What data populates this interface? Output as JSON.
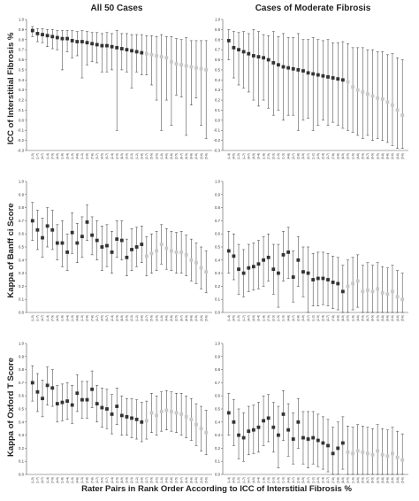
{
  "column_titles": [
    "All 50 Cases",
    "Cases of Moderate Fibrosis"
  ],
  "row_labels": [
    "ICC of Interstitial Fibrosis %",
    "Kappa of Banff ci Score",
    "Kappa of Oxford T Score"
  ],
  "footer": "Rater Pairs in Rank Order According to ICC of Interstitial Fibrosis %",
  "colors": {
    "marker_dark": "#333333",
    "marker_light": "#c8c8c8",
    "errorbar": "#333333",
    "axis": "#555555"
  },
  "chart_data": [
    {
      "type": "scatter",
      "panel": "ICC of Interstitial Fibrosis % / All 50 Cases",
      "ylim": [
        -0.3,
        1.0
      ],
      "yticks": [
        1.0,
        0.9,
        0.8,
        0.7,
        0.6,
        0.5,
        0.4,
        0.3,
        0.2,
        0.1,
        0.0,
        -0.1,
        -0.2,
        -0.3
      ],
      "x": [
        "(1-5)",
        "(1-7)",
        "(4-7)",
        "(1-4)",
        "(7-9)",
        "(4-9)",
        "(1-8)",
        "(3-4)",
        "(1-9)",
        "(4-8)",
        "(1-3)",
        "(2-8)",
        "(7-8)",
        "(3-7)",
        "(4-5)",
        "(5-7)",
        "(2-4)",
        "(2-9)",
        "(8-9)",
        "(3-9)",
        "(2-3)",
        "(1-2)",
        "(3-8)",
        "(2-7)",
        "(5-9)",
        "(3-5)",
        "(1-6)",
        "(4-6)",
        "(5-8)",
        "(2-5)",
        "(6-7)",
        "(6-9)",
        "(6-8)",
        "(2-6)",
        "(3-6)",
        "(5-6)"
      ],
      "values": [
        0.89,
        0.86,
        0.85,
        0.84,
        0.83,
        0.82,
        0.81,
        0.81,
        0.79,
        0.78,
        0.78,
        0.77,
        0.76,
        0.75,
        0.74,
        0.74,
        0.73,
        0.72,
        0.71,
        0.7,
        0.69,
        0.68,
        0.67,
        0.66,
        0.65,
        0.64,
        0.63,
        0.62,
        0.58,
        0.56,
        0.55,
        0.54,
        0.53,
        0.52,
        0.51,
        0.5
      ],
      "lower": [
        0.83,
        0.78,
        0.77,
        0.73,
        0.71,
        0.7,
        0.5,
        0.68,
        0.62,
        0.64,
        0.42,
        0.55,
        0.58,
        0.57,
        0.48,
        0.48,
        0.5,
        -0.1,
        0.5,
        0.48,
        0.32,
        0.48,
        0.45,
        0.45,
        0.35,
        0.2,
        -0.1,
        0.2,
        -0.05,
        0.25,
        0.23,
        -0.15,
        0.15,
        0.22,
        -0.05,
        -0.18
      ],
      "upper": [
        0.93,
        0.91,
        0.91,
        0.9,
        0.9,
        0.89,
        0.89,
        0.89,
        0.89,
        0.88,
        0.89,
        0.88,
        0.87,
        0.87,
        0.86,
        0.87,
        0.86,
        0.89,
        0.86,
        0.86,
        0.85,
        0.85,
        0.85,
        0.84,
        0.84,
        0.83,
        0.85,
        0.83,
        0.83,
        0.81,
        0.8,
        0.82,
        0.79,
        0.79,
        0.79,
        0.79
      ],
      "light_from_index": 23
    },
    {
      "type": "scatter",
      "panel": "ICC of Interstitial Fibrosis % / Cases of Moderate Fibrosis",
      "ylim": [
        -0.3,
        1.0
      ],
      "yticks": [
        1.0,
        0.9,
        0.8,
        0.7,
        0.6,
        0.5,
        0.4,
        0.3,
        0.2,
        0.1,
        0.0,
        -0.1,
        -0.2,
        -0.3
      ],
      "x": [
        "(1-4)",
        "(4-5)",
        "(1-5)",
        "(1-7)",
        "(4-7)",
        "(4-9)",
        "(3-4)",
        "(1-8)",
        "(7-9)",
        "(2-3)",
        "(1-9)",
        "(1-3)",
        "(4-8)",
        "(3-7)",
        "(2-8)",
        "(3-9)",
        "(5-7)",
        "(1-2)",
        "(2-9)",
        "(2-4)",
        "(2-7)",
        "(7-8)",
        "(3-8)",
        "(8-9)",
        "(3-5)",
        "(1-6)",
        "(4-6)",
        "(5-9)",
        "(6-7)",
        "(6-9)",
        "(2-5)",
        "(5-8)",
        "(6-8)",
        "(2-6)",
        "(3-6)",
        "(5-6)"
      ],
      "values": [
        0.79,
        0.72,
        0.7,
        0.68,
        0.66,
        0.64,
        0.63,
        0.62,
        0.6,
        0.57,
        0.55,
        0.53,
        0.52,
        0.51,
        0.5,
        0.49,
        0.47,
        0.46,
        0.45,
        0.44,
        0.43,
        0.42,
        0.41,
        0.4,
        0.38,
        0.33,
        0.3,
        0.28,
        0.26,
        0.24,
        0.22,
        0.21,
        0.18,
        0.15,
        0.1,
        0.05
      ],
      "lower": [
        0.6,
        0.42,
        0.35,
        0.32,
        0.28,
        0.2,
        0.14,
        0.2,
        0.12,
        0.05,
        0.1,
        0.0,
        0.05,
        0.05,
        -0.1,
        0.0,
        0.02,
        -0.1,
        -0.05,
        0.0,
        -0.05,
        -0.02,
        -0.05,
        -0.08,
        -0.1,
        -0.12,
        -0.15,
        -0.18,
        -0.15,
        -0.2,
        -0.18,
        -0.2,
        -0.22,
        -0.25,
        -0.28,
        -0.28
      ],
      "upper": [
        0.9,
        0.88,
        0.87,
        0.88,
        0.86,
        0.9,
        0.88,
        0.85,
        0.84,
        0.88,
        0.83,
        0.86,
        0.82,
        0.82,
        0.86,
        0.8,
        0.8,
        0.82,
        0.8,
        0.79,
        0.8,
        0.77,
        0.77,
        0.78,
        0.76,
        0.72,
        0.72,
        0.72,
        0.7,
        0.7,
        0.68,
        0.68,
        0.65,
        0.66,
        0.62,
        0.6
      ],
      "light_from_index": 24
    },
    {
      "type": "scatter",
      "panel": "Kappa of Banff ci Score / All 50 Cases",
      "ylim": [
        0.0,
        1.0
      ],
      "yticks": [
        1.0,
        0.9,
        0.8,
        0.7,
        0.6,
        0.5,
        0.4,
        0.3,
        0.2,
        0.1,
        0.0
      ],
      "x": [
        "(1-5)",
        "(1-7)",
        "(4-7)",
        "(1-4)",
        "(7-9)",
        "(4-9)",
        "(1-8)",
        "(3-4)",
        "(1-9)",
        "(4-8)",
        "(1-3)",
        "(2-8)",
        "(7-8)",
        "(3-7)",
        "(4-5)",
        "(5-7)",
        "(2-4)",
        "(2-9)",
        "(8-9)",
        "(3-9)",
        "(2-3)",
        "(1-2)",
        "(3-8)",
        "(2-7)",
        "(5-9)",
        "(3-5)",
        "(1-6)",
        "(4-6)",
        "(5-8)",
        "(2-5)",
        "(6-7)",
        "(6-9)",
        "(6-8)",
        "(2-6)",
        "(3-6)",
        "(5-6)"
      ],
      "values": [
        0.7,
        0.63,
        0.57,
        0.66,
        0.63,
        0.53,
        0.53,
        0.46,
        0.61,
        0.53,
        0.58,
        0.69,
        0.59,
        0.55,
        0.5,
        0.51,
        0.46,
        0.56,
        0.55,
        0.42,
        0.48,
        0.5,
        0.52,
        0.43,
        0.45,
        0.47,
        0.52,
        0.49,
        0.47,
        0.46,
        0.46,
        0.44,
        0.4,
        0.38,
        0.34,
        0.31
      ],
      "lower": [
        0.55,
        0.48,
        0.42,
        0.5,
        0.48,
        0.4,
        0.35,
        0.32,
        0.45,
        0.38,
        0.42,
        0.55,
        0.44,
        0.4,
        0.32,
        0.35,
        0.3,
        0.42,
        0.4,
        0.28,
        0.32,
        0.35,
        0.38,
        0.28,
        0.3,
        0.32,
        0.37,
        0.33,
        0.32,
        0.3,
        0.3,
        0.28,
        0.24,
        0.22,
        0.18,
        0.15
      ],
      "upper": [
        0.84,
        0.78,
        0.72,
        0.8,
        0.78,
        0.67,
        0.7,
        0.6,
        0.76,
        0.68,
        0.73,
        0.82,
        0.73,
        0.7,
        0.66,
        0.67,
        0.62,
        0.7,
        0.7,
        0.56,
        0.64,
        0.65,
        0.66,
        0.58,
        0.6,
        0.62,
        0.67,
        0.64,
        0.62,
        0.61,
        0.62,
        0.59,
        0.56,
        0.53,
        0.5,
        0.47
      ],
      "light_from_index": 23
    },
    {
      "type": "scatter",
      "panel": "Kappa of Banff ci Score / Cases of Moderate Fibrosis",
      "ylim": [
        0.0,
        1.0
      ],
      "yticks": [
        1.0,
        0.9,
        0.8,
        0.7,
        0.6,
        0.5,
        0.4,
        0.3,
        0.2,
        0.1,
        0.0
      ],
      "x": [
        "(1-4)",
        "(4-5)",
        "(1-5)",
        "(1-7)",
        "(4-7)",
        "(4-9)",
        "(3-4)",
        "(1-8)",
        "(7-9)",
        "(2-3)",
        "(1-9)",
        "(1-3)",
        "(4-8)",
        "(3-7)",
        "(2-8)",
        "(3-9)",
        "(5-7)",
        "(1-2)",
        "(2-9)",
        "(2-4)",
        "(2-7)",
        "(7-8)",
        "(3-8)",
        "(8-9)",
        "(3-5)",
        "(1-6)",
        "(4-6)",
        "(5-9)",
        "(6-7)",
        "(6-9)",
        "(2-5)",
        "(5-8)",
        "(6-8)",
        "(2-6)",
        "(3-6)",
        "(5-6)"
      ],
      "values": [
        0.47,
        0.43,
        0.33,
        0.3,
        0.34,
        0.35,
        0.37,
        0.4,
        0.42,
        0.33,
        0.3,
        0.44,
        0.46,
        0.27,
        0.4,
        0.31,
        0.3,
        0.25,
        0.26,
        0.26,
        0.25,
        0.23,
        0.22,
        0.16,
        0.2,
        0.22,
        0.24,
        0.16,
        0.17,
        0.16,
        0.18,
        0.15,
        0.14,
        0.16,
        0.12,
        0.1
      ],
      "lower": [
        0.3,
        0.25,
        0.14,
        0.12,
        0.16,
        0.17,
        0.18,
        0.2,
        0.24,
        0.14,
        0.04,
        0.24,
        0.26,
        0.08,
        0.2,
        0.12,
        -0.02,
        0.05,
        0.05,
        0.06,
        0.05,
        0.03,
        0.02,
        -0.02,
        0.0,
        0.02,
        0.04,
        -0.03,
        -0.02,
        -0.04,
        -0.02,
        -0.05,
        -0.06,
        -0.03,
        -0.08,
        -0.1
      ],
      "upper": [
        0.62,
        0.6,
        0.52,
        0.48,
        0.52,
        0.53,
        0.55,
        0.58,
        0.6,
        0.52,
        0.52,
        0.62,
        0.65,
        0.47,
        0.58,
        0.5,
        0.5,
        0.45,
        0.46,
        0.46,
        0.45,
        0.43,
        0.42,
        0.36,
        0.4,
        0.42,
        0.44,
        0.36,
        0.38,
        0.36,
        0.38,
        0.35,
        0.34,
        0.36,
        0.32,
        0.3
      ],
      "light_from_index": 24
    },
    {
      "type": "scatter",
      "panel": "Kappa of Oxford T Score / All 50 Cases",
      "ylim": [
        0.0,
        1.0
      ],
      "yticks": [
        1.0,
        0.9,
        0.8,
        0.7,
        0.6,
        0.5,
        0.4,
        0.3,
        0.2,
        0.1,
        0.0
      ],
      "x": [
        "(1-5)",
        "(1-7)",
        "(4-7)",
        "(1-4)",
        "(7-9)",
        "(4-9)",
        "(1-8)",
        "(3-4)",
        "(1-9)",
        "(4-8)",
        "(1-3)",
        "(2-8)",
        "(7-8)",
        "(3-7)",
        "(4-5)",
        "(5-7)",
        "(2-4)",
        "(2-9)",
        "(8-9)",
        "(3-9)",
        "(2-3)",
        "(1-2)",
        "(3-8)",
        "(2-7)",
        "(5-9)",
        "(3-5)",
        "(1-6)",
        "(4-6)",
        "(5-8)",
        "(2-5)",
        "(6-7)",
        "(6-9)",
        "(6-8)",
        "(2-6)",
        "(3-6)",
        "(5-6)"
      ],
      "values": [
        0.7,
        0.63,
        0.58,
        0.68,
        0.66,
        0.54,
        0.55,
        0.56,
        0.53,
        0.62,
        0.57,
        0.57,
        0.65,
        0.54,
        0.51,
        0.5,
        0.46,
        0.52,
        0.45,
        0.44,
        0.43,
        0.42,
        0.4,
        0.41,
        0.47,
        0.45,
        0.48,
        0.49,
        0.48,
        0.47,
        0.46,
        0.44,
        0.42,
        0.38,
        0.35,
        0.32
      ],
      "lower": [
        0.56,
        0.48,
        0.44,
        0.53,
        0.52,
        0.4,
        0.41,
        0.42,
        0.39,
        0.48,
        0.43,
        0.43,
        0.51,
        0.4,
        0.36,
        0.35,
        0.31,
        0.38,
        0.3,
        0.3,
        0.28,
        0.27,
        0.25,
        0.27,
        0.32,
        0.3,
        0.33,
        0.34,
        0.33,
        0.32,
        0.3,
        0.28,
        0.26,
        0.22,
        0.18,
        0.15
      ],
      "upper": [
        0.83,
        0.77,
        0.72,
        0.82,
        0.8,
        0.68,
        0.69,
        0.7,
        0.68,
        0.76,
        0.71,
        0.71,
        0.79,
        0.68,
        0.66,
        0.65,
        0.61,
        0.66,
        0.6,
        0.58,
        0.58,
        0.57,
        0.55,
        0.56,
        0.62,
        0.6,
        0.63,
        0.64,
        0.63,
        0.62,
        0.62,
        0.6,
        0.58,
        0.54,
        0.52,
        0.49
      ],
      "light_from_index": 23
    },
    {
      "type": "scatter",
      "panel": "Kappa of Oxford T Score / Cases of Moderate Fibrosis",
      "ylim": [
        0.0,
        1.0
      ],
      "yticks": [
        1.0,
        0.9,
        0.8,
        0.7,
        0.6,
        0.5,
        0.4,
        0.3,
        0.2,
        0.1,
        0.0
      ],
      "x": [
        "(1-4)",
        "(4-5)",
        "(1-5)",
        "(1-7)",
        "(4-7)",
        "(4-9)",
        "(3-4)",
        "(1-8)",
        "(7-9)",
        "(2-3)",
        "(1-9)",
        "(1-3)",
        "(4-8)",
        "(3-7)",
        "(2-8)",
        "(3-9)",
        "(5-7)",
        "(1-2)",
        "(2-9)",
        "(2-4)",
        "(2-7)",
        "(7-8)",
        "(3-8)",
        "(8-9)",
        "(3-5)",
        "(1-6)",
        "(4-6)",
        "(5-9)",
        "(6-7)",
        "(6-9)",
        "(2-5)",
        "(5-8)",
        "(6-8)",
        "(2-6)",
        "(3-6)",
        "(5-6)"
      ],
      "values": [
        0.47,
        0.4,
        0.3,
        0.28,
        0.33,
        0.34,
        0.36,
        0.41,
        0.43,
        0.36,
        0.3,
        0.46,
        0.34,
        0.27,
        0.4,
        0.28,
        0.27,
        0.28,
        0.26,
        0.24,
        0.22,
        0.16,
        0.2,
        0.24,
        0.17,
        0.16,
        0.18,
        0.17,
        0.16,
        0.15,
        0.18,
        0.15,
        0.14,
        0.16,
        0.13,
        0.11
      ],
      "lower": [
        0.3,
        0.22,
        0.12,
        0.1,
        0.15,
        0.16,
        0.17,
        0.22,
        0.25,
        0.17,
        0.05,
        0.26,
        0.14,
        0.08,
        0.2,
        0.08,
        0.05,
        0.08,
        0.06,
        0.04,
        0.02,
        -0.04,
        0.0,
        0.04,
        -0.03,
        -0.04,
        -0.02,
        -0.03,
        -0.04,
        -0.05,
        -0.02,
        -0.05,
        -0.06,
        -0.04,
        -0.08,
        -0.1
      ],
      "upper": [
        0.62,
        0.57,
        0.5,
        0.47,
        0.52,
        0.53,
        0.55,
        0.6,
        0.61,
        0.55,
        0.52,
        0.64,
        0.54,
        0.47,
        0.58,
        0.48,
        0.48,
        0.48,
        0.46,
        0.44,
        0.42,
        0.36,
        0.4,
        0.44,
        0.37,
        0.36,
        0.38,
        0.37,
        0.36,
        0.35,
        0.38,
        0.35,
        0.34,
        0.36,
        0.33,
        0.31
      ],
      "light_from_index": 24
    }
  ]
}
